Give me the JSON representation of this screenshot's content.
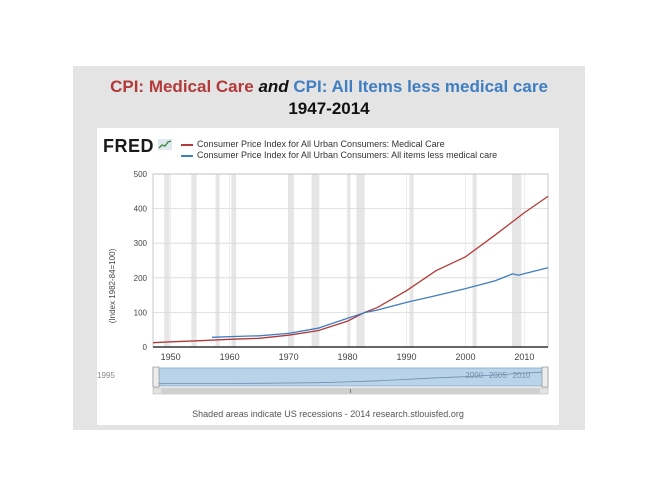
{
  "slide": {
    "title_part1": "CPI: Medical Care",
    "title_and": "and",
    "title_part2": "CPI: All Items less medical care",
    "subtitle": "1947-2014",
    "title_color_1": "#b23a3a",
    "title_color_2": "#3f7ec1"
  },
  "fred": {
    "logo_text": "FRED",
    "footer": "Shaded areas indicate US recessions - 2014 research.stlouisfed.org"
  },
  "chart_data": {
    "type": "line",
    "title": "",
    "ylabel": "(Index 1982-84=100)",
    "xlabel": "",
    "xlim": [
      1947,
      2014
    ],
    "ylim": [
      0,
      500
    ],
    "yticks": [
      0,
      100,
      200,
      300,
      400,
      500
    ],
    "xticks": [
      1950,
      1960,
      1970,
      1980,
      1990,
      2000,
      2010
    ],
    "grid": true,
    "legend_position": "top",
    "recessions": [
      [
        1948.9,
        1949.8
      ],
      [
        1953.5,
        1954.4
      ],
      [
        1957.6,
        1958.3
      ],
      [
        1960.3,
        1961.1
      ],
      [
        1969.9,
        1970.9
      ],
      [
        1973.9,
        1975.2
      ],
      [
        1980.0,
        1980.5
      ],
      [
        1981.5,
        1982.9
      ],
      [
        1990.5,
        1991.2
      ],
      [
        2001.2,
        2001.9
      ],
      [
        2007.9,
        2009.5
      ]
    ],
    "series": [
      {
        "name": "Consumer Price Index for All Urban Consumers: Medical Care",
        "color": "#b23a3a",
        "x": [
          1947,
          1950,
          1955,
          1960,
          1965,
          1970,
          1975,
          1980,
          1983,
          1985,
          1990,
          1995,
          2000,
          2005,
          2010,
          2014
        ],
        "values": [
          12.5,
          15.1,
          18.2,
          22.3,
          25.2,
          34.0,
          47.5,
          74.9,
          100.6,
          113.5,
          162.8,
          220.5,
          260.8,
          323.2,
          388.4,
          435.3
        ]
      },
      {
        "name": "Consumer Price Index for All Urban Consumers: All items less medical care",
        "color": "#3f7ec1",
        "x": [
          1957,
          1960,
          1965,
          1970,
          1975,
          1980,
          1983,
          1985,
          1990,
          1995,
          2000,
          2005,
          2008,
          2009,
          2010,
          2014
        ],
        "values": [
          28.0,
          30.2,
          32.5,
          39.2,
          54.3,
          83.0,
          99.6,
          106.7,
          128.8,
          148.6,
          168.9,
          190.9,
          211.5,
          207.5,
          212.0,
          229.0
        ]
      }
    ],
    "navigator": {
      "labels": [
        "1995",
        "2000",
        "2005",
        "2010"
      ]
    }
  }
}
